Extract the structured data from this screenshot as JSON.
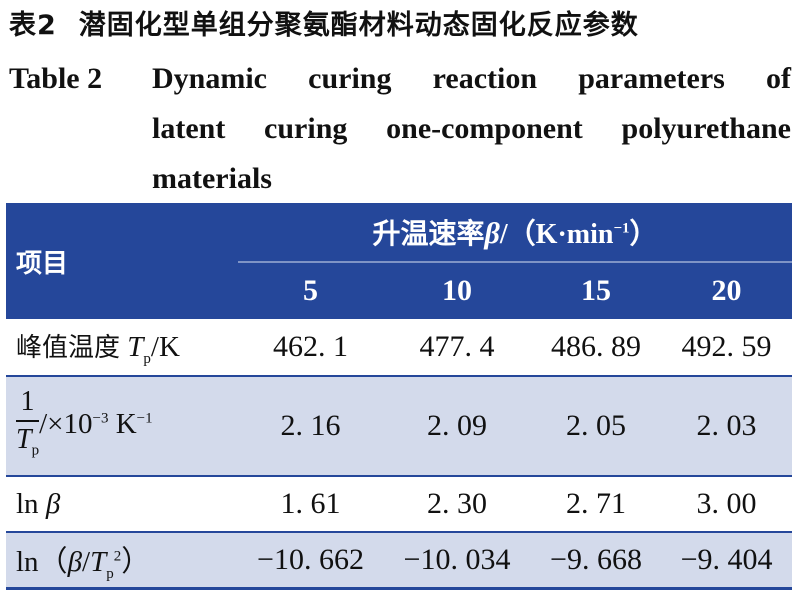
{
  "caption": {
    "cn_label": "表2",
    "cn_title": "潜固化型单组分聚氨酯材料动态固化反应参数",
    "en_label": "Table 2",
    "en_title_line1": "Dynamic curing reaction parameters of",
    "en_title_line2": "latent curing one-component polyurethane",
    "en_title_line3": "materials"
  },
  "table": {
    "item_header": "项目",
    "group_header_text": "升温速率",
    "group_header_symbol": "β",
    "group_header_unit": "/（K·min",
    "group_header_unit_exp": "−1",
    "group_header_close": "）",
    "rates": [
      "5",
      "10",
      "15",
      "20"
    ],
    "rows": [
      {
        "label_cn": "峰值温度",
        "label_sym": "T",
        "label_sub": "p",
        "label_unit": "/K",
        "values": [
          "462. 1",
          "477. 4",
          "486. 89",
          "492. 59"
        ]
      },
      {
        "label_frac_num": "1",
        "label_frac_den_sym": "T",
        "label_frac_den_sub": "p",
        "label_unit": "/×10",
        "label_unit_exp": "−3",
        "label_unit2": " K",
        "label_unit2_exp": "−1",
        "values": [
          "2. 16",
          "2. 09",
          "2. 05",
          "2. 03"
        ]
      },
      {
        "label_ln": "ln ",
        "label_sym": "β",
        "values": [
          "1. 61",
          "2. 30",
          "2. 71",
          "3. 00"
        ]
      },
      {
        "label_ln": "ln（",
        "label_sym": "β",
        "label_mid": "/",
        "label_sym2": "T",
        "label_sub": "p",
        "label_sup": "2",
        "label_close": "）",
        "values": [
          "−10. 662",
          "−10. 034",
          "−9. 668",
          "−9. 404"
        ]
      }
    ]
  }
}
